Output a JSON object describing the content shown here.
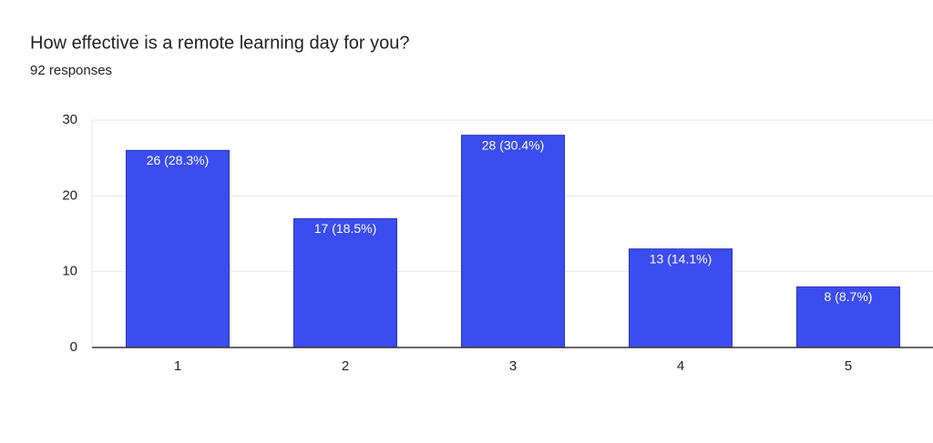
{
  "chart_data": {
    "type": "bar",
    "title": "How effective is a remote learning day for you?",
    "subtitle": "92 responses",
    "categories": [
      "1",
      "2",
      "3",
      "4",
      "5"
    ],
    "values": [
      26,
      17,
      28,
      13,
      8
    ],
    "value_labels": [
      "26 (28.3%)",
      "17 (18.5%)",
      "28 (30.4%)",
      "13 (14.1%)",
      "8 (8.7%)"
    ],
    "color": "#3b4cf0",
    "ylim": [
      0,
      30
    ],
    "yticks": [
      0,
      10,
      20,
      30
    ],
    "grid": true
  }
}
